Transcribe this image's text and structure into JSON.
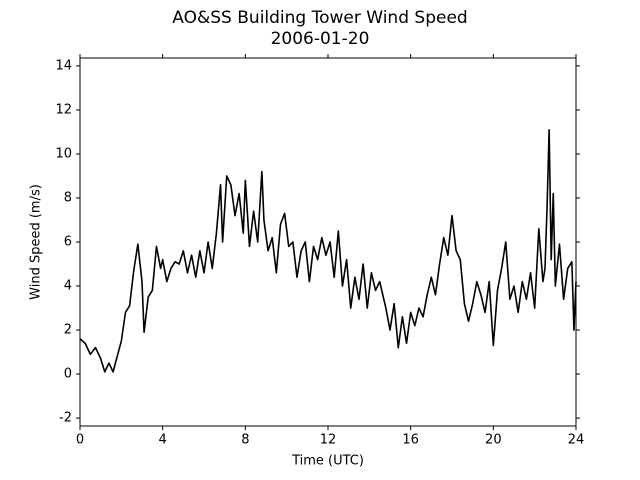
{
  "chart_data": {
    "type": "line",
    "title": "AO&SS Building Tower Wind Speed",
    "subtitle": "2006-01-20",
    "xlabel": "Time (UTC)",
    "ylabel": "Wind Speed (m/s)",
    "xlim": [
      0,
      24
    ],
    "ylim": [
      -2.36,
      14.36
    ],
    "xticks": [
      0,
      4,
      8,
      12,
      16,
      20,
      24
    ],
    "yticks": [
      -2,
      0,
      2,
      4,
      6,
      8,
      10,
      12,
      14
    ],
    "series": [
      {
        "color": "#000000",
        "x": [
          0,
          0.25,
          0.5,
          0.75,
          1.0,
          1.2,
          1.4,
          1.6,
          1.8,
          2.0,
          2.2,
          2.4,
          2.6,
          2.8,
          3.0,
          3.1,
          3.3,
          3.5,
          3.7,
          3.9,
          4.0,
          4.2,
          4.4,
          4.6,
          4.8,
          5.0,
          5.2,
          5.4,
          5.6,
          5.8,
          6.0,
          6.2,
          6.4,
          6.6,
          6.8,
          6.9,
          7.1,
          7.3,
          7.5,
          7.7,
          7.9,
          8.0,
          8.2,
          8.4,
          8.6,
          8.8,
          8.9,
          9.1,
          9.3,
          9.5,
          9.7,
          9.9,
          10.1,
          10.3,
          10.5,
          10.7,
          10.9,
          11.1,
          11.3,
          11.5,
          11.7,
          11.9,
          12.1,
          12.3,
          12.5,
          12.7,
          12.9,
          13.1,
          13.3,
          13.5,
          13.7,
          13.9,
          14.1,
          14.3,
          14.5,
          14.8,
          15.0,
          15.2,
          15.4,
          15.6,
          15.8,
          16.0,
          16.2,
          16.4,
          16.6,
          16.8,
          17.0,
          17.2,
          17.4,
          17.6,
          17.8,
          18.0,
          18.2,
          18.4,
          18.6,
          18.8,
          19.0,
          19.2,
          19.4,
          19.6,
          19.8,
          20.0,
          20.2,
          20.4,
          20.6,
          20.8,
          21.0,
          21.2,
          21.4,
          21.6,
          21.8,
          22.0,
          22.2,
          22.4,
          22.5,
          22.6,
          22.7,
          22.8,
          22.9,
          23.0,
          23.2,
          23.4,
          23.6,
          23.8,
          23.9,
          24.0
        ],
        "values": [
          1.6,
          1.4,
          0.9,
          1.2,
          0.7,
          0.1,
          0.5,
          0.1,
          0.8,
          1.5,
          2.8,
          3.1,
          4.7,
          5.9,
          4.2,
          1.9,
          3.5,
          3.8,
          5.8,
          4.8,
          5.2,
          4.2,
          4.8,
          5.1,
          5.0,
          5.6,
          4.6,
          5.4,
          4.4,
          5.6,
          4.6,
          6.0,
          4.8,
          6.4,
          8.6,
          6.0,
          9.0,
          8.6,
          7.2,
          8.2,
          6.4,
          8.8,
          5.8,
          7.4,
          6.0,
          9.2,
          7.0,
          5.6,
          6.2,
          4.6,
          6.8,
          7.3,
          5.8,
          6.0,
          4.4,
          5.6,
          6.0,
          4.2,
          5.8,
          5.2,
          6.2,
          5.4,
          6.0,
          4.4,
          6.5,
          4.0,
          5.2,
          3.0,
          4.4,
          3.4,
          5.0,
          3.0,
          4.6,
          3.8,
          4.2,
          3.0,
          2.0,
          3.2,
          1.2,
          2.6,
          1.4,
          2.8,
          2.2,
          3.0,
          2.6,
          3.6,
          4.4,
          3.6,
          5.0,
          6.2,
          5.4,
          7.2,
          5.6,
          5.2,
          3.2,
          2.4,
          3.2,
          4.2,
          3.6,
          2.8,
          4.2,
          1.3,
          3.8,
          4.8,
          6.0,
          3.4,
          4.0,
          2.8,
          4.2,
          3.4,
          4.6,
          3.0,
          6.6,
          4.2,
          4.8,
          7.6,
          11.1,
          5.2,
          8.2,
          4.0,
          5.9,
          3.4,
          4.8,
          5.1,
          2.0,
          4.2
        ]
      }
    ]
  }
}
